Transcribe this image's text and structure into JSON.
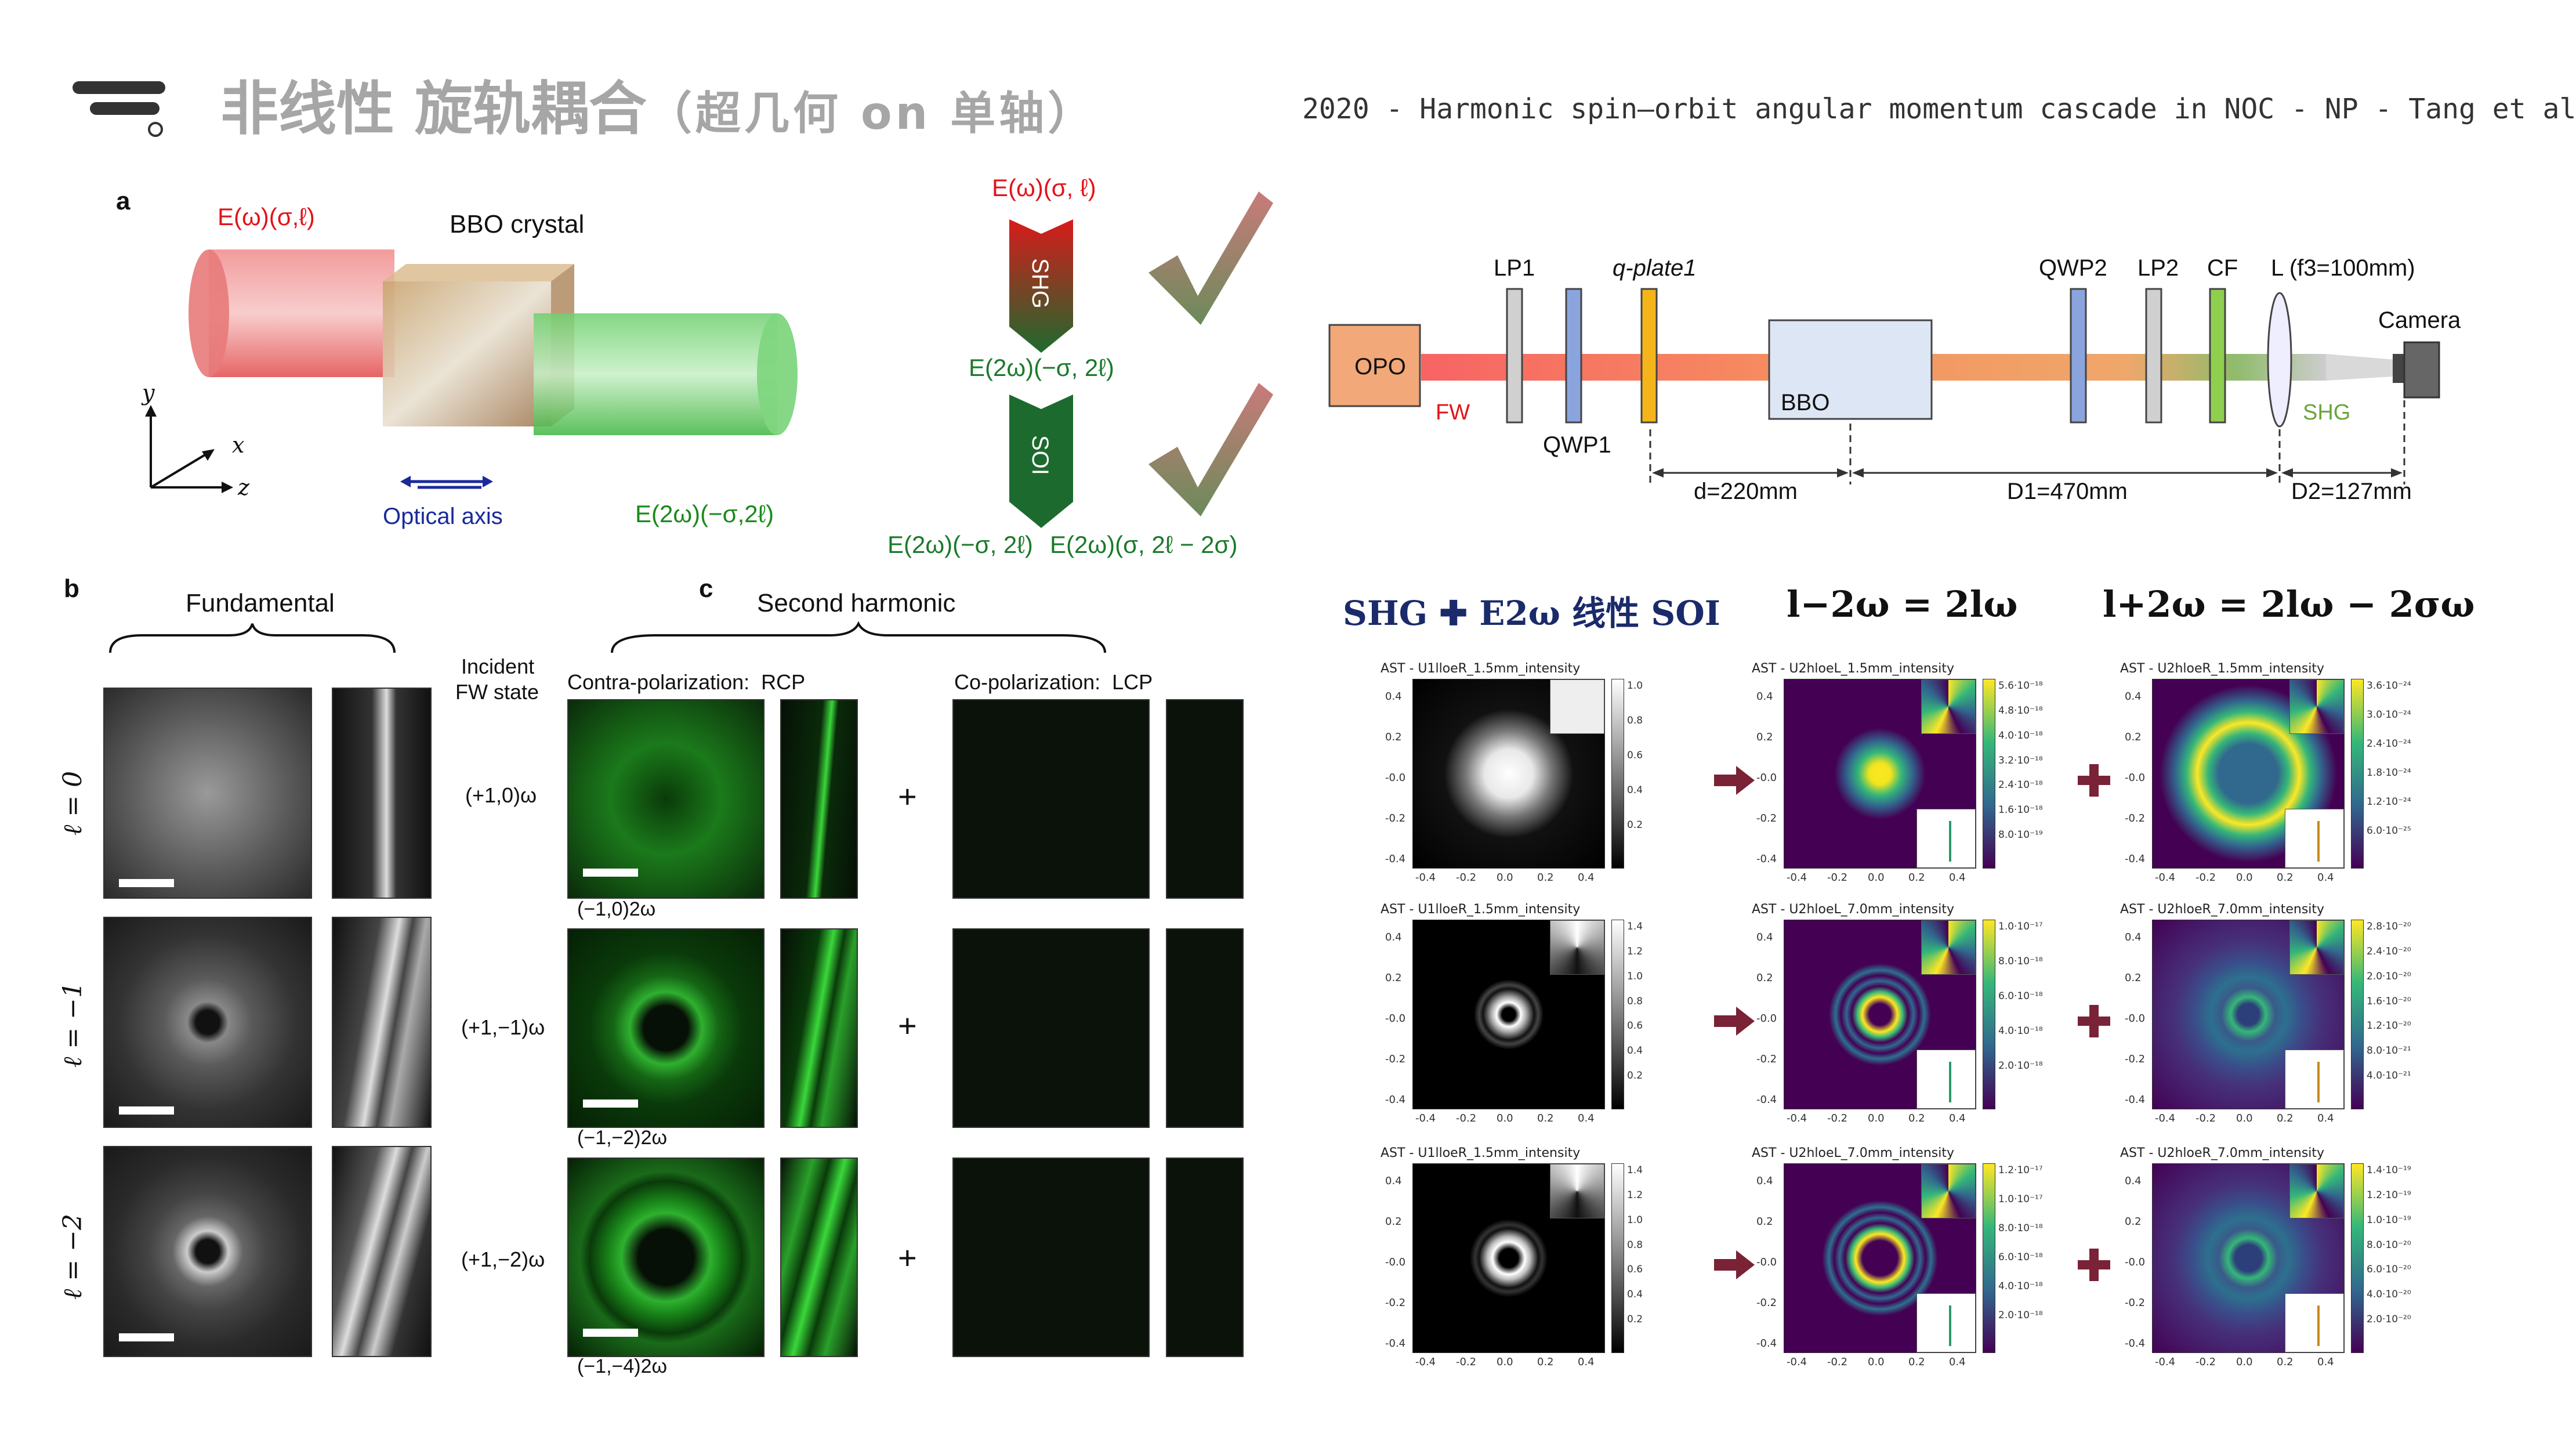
{
  "header": {
    "title": "非线性 旋轨耦合",
    "subtitle": "（超几何 on 单轴）",
    "reference": "2020 - Harmonic spin–orbit angular momentum cascade in NOC - NP - Tang et al"
  },
  "panel_a": {
    "letter": "a",
    "input_field": "E(ω)(σ,ℓ)",
    "crystal": "BBO crystal",
    "output_field": "E(2ω)(−σ,2ℓ)",
    "optical_axis": "Optical axis",
    "axis_x": "x",
    "axis_y": "y",
    "axis_z": "z"
  },
  "cascade": {
    "top_field": "E(ω)(σ, ℓ)",
    "shg": "SHG",
    "middle_field": "E(2ω)(−σ, 2ℓ)",
    "soi": "SOI",
    "out_left": "E(2ω)(−σ, 2ℓ)",
    "out_right": "E(2ω)(σ, 2ℓ − 2σ)"
  },
  "setup": {
    "opo": "OPO",
    "fw": "FW",
    "lp1": "LP1",
    "qwp1": "QWP1",
    "qplate": "q-plate1",
    "bbo": "BBO",
    "qwp2": "QWP2",
    "lp2": "LP2",
    "cf": "CF",
    "lens": "L (f3=100mm)",
    "camera": "Camera",
    "shg": "SHG",
    "d": "d=220mm",
    "d1": "D1=470mm",
    "d2": "D2=127mm"
  },
  "panel_b": {
    "letter": "b",
    "header": "Fundamental",
    "incident": "Incident",
    "fw_state": "FW state",
    "rows": [
      {
        "ell": "ℓ = 0",
        "state": "(+1,0)ω"
      },
      {
        "ell": "ℓ = −1",
        "state": "(+1,−1)ω"
      },
      {
        "ell": "ℓ = −2",
        "state": "(+1,−2)ω"
      }
    ]
  },
  "panel_c": {
    "letter": "c",
    "header": "Second harmonic",
    "contra": "Contra-polarization:  RCP",
    "co": "Co-polarization:  LCP",
    "plus": "+",
    "rows": [
      "(−1,0)2ω",
      "(−1,−2)2ω",
      "(−1,−4)2ω"
    ]
  },
  "sim": {
    "heading_left": "SHG ✚ E2ω 线性 SOI",
    "heading_mid": "l−2ω = 2lω",
    "heading_right": "l+2ω = 2lω − 2σω",
    "titles": [
      [
        "AST - U1lloeR_1.5mm_intensity",
        "AST - U2hloeL_1.5mm_intensity",
        "AST - U2hloeR_1.5mm_intensity"
      ],
      [
        "AST - U1lloeR_1.5mm_intensity",
        "AST - U2hloeL_7.0mm_intensity",
        "AST - U2hloeR_7.0mm_intensity"
      ],
      [
        "AST - U1lloeR_1.5mm_intensity",
        "AST - U2hloeL_7.0mm_intensity",
        "AST - U2hloeR_7.0mm_intensity"
      ]
    ],
    "axis_ticks": [
      "-0.4",
      "-0.2",
      "0.0",
      "0.2",
      "0.4"
    ],
    "y_ticks": [
      "0.4",
      "0.2",
      "-0.0",
      "-0.2",
      "-0.4"
    ],
    "colorbars": [
      [
        [
          "1.0",
          "0.8",
          "0.6",
          "0.4",
          "0.2"
        ],
        [
          "5.6·10⁻¹⁸",
          "4.8·10⁻¹⁸",
          "4.0·10⁻¹⁸",
          "3.2·10⁻¹⁸",
          "2.4·10⁻¹⁸",
          "1.6·10⁻¹⁸",
          "8.0·10⁻¹⁹"
        ],
        [
          "3.6·10⁻²⁴",
          "3.0·10⁻²⁴",
          "2.4·10⁻²⁴",
          "1.8·10⁻²⁴",
          "1.2·10⁻²⁴",
          "6.0·10⁻²⁵"
        ]
      ],
      [
        [
          "1.4",
          "1.2",
          "1.0",
          "0.8",
          "0.6",
          "0.4",
          "0.2"
        ],
        [
          "1.0·10⁻¹⁷",
          "8.0·10⁻¹⁸",
          "6.0·10⁻¹⁸",
          "4.0·10⁻¹⁸",
          "2.0·10⁻¹⁸"
        ],
        [
          "2.8·10⁻²⁰",
          "2.4·10⁻²⁰",
          "2.0·10⁻²⁰",
          "1.6·10⁻²⁰",
          "1.2·10⁻²⁰",
          "8.0·10⁻²¹",
          "4.0·10⁻²¹"
        ]
      ],
      [
        [
          "1.4",
          "1.2",
          "1.0",
          "0.8",
          "0.6",
          "0.4",
          "0.2"
        ],
        [
          "1.2·10⁻¹⁷",
          "1.0·10⁻¹⁷",
          "8.0·10⁻¹⁸",
          "6.0·10⁻¹⁸",
          "4.0·10⁻¹⁸",
          "2.0·10⁻¹⁸"
        ],
        [
          "1.4·10⁻¹⁹",
          "1.2·10⁻¹⁹",
          "1.0·10⁻¹⁹",
          "8.0·10⁻²⁰",
          "6.0·10⁻²⁰",
          "4.0·10⁻²⁰",
          "2.0·10⁻²⁰"
        ]
      ]
    ]
  }
}
